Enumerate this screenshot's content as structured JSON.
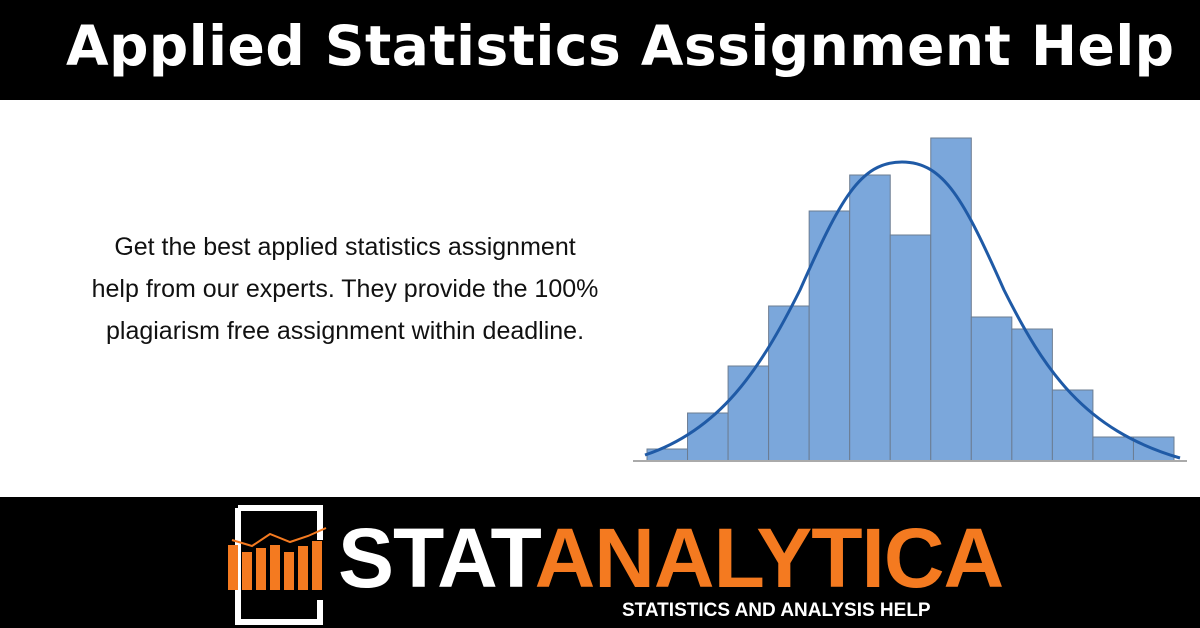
{
  "header": {
    "title": "Applied Statistics Assignment Help"
  },
  "body": {
    "lines": [
      "Get the best applied statistics assignment",
      "help from our experts. They provide the 100%",
      "plagiarism free assignment within deadline."
    ]
  },
  "chart_data": {
    "type": "bar",
    "categories": [
      null,
      null,
      null,
      null,
      null,
      null,
      null,
      null,
      null,
      null,
      null,
      null,
      null
    ],
    "values": [
      12,
      48,
      95,
      155,
      250,
      286,
      226,
      323,
      144,
      132,
      71,
      24,
      24
    ],
    "color": "#7ba7db",
    "ylim": [
      0,
      340
    ]
  },
  "logo": {
    "name_a": "STAT",
    "name_b": "ANALYTICA",
    "tagline": "STATISTICS AND ANALYSIS HELP"
  }
}
